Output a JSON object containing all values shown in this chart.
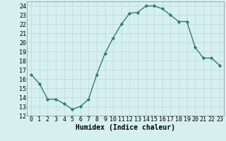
{
  "x": [
    0,
    1,
    2,
    3,
    4,
    5,
    6,
    7,
    8,
    9,
    10,
    11,
    12,
    13,
    14,
    15,
    16,
    17,
    18,
    19,
    20,
    21,
    22,
    23
  ],
  "y": [
    16.5,
    15.5,
    13.8,
    13.8,
    13.3,
    12.7,
    13.0,
    13.8,
    16.5,
    18.8,
    20.5,
    22.0,
    23.2,
    23.3,
    24.0,
    24.0,
    23.7,
    23.0,
    22.3,
    22.3,
    19.5,
    18.3,
    18.3,
    17.5
  ],
  "xlabel": "Humidex (Indice chaleur)",
  "xlim": [
    -0.5,
    23.5
  ],
  "ylim": [
    12,
    24.5
  ],
  "yticks": [
    12,
    13,
    14,
    15,
    16,
    17,
    18,
    19,
    20,
    21,
    22,
    23,
    24
  ],
  "xticks": [
    0,
    1,
    2,
    3,
    4,
    5,
    6,
    7,
    8,
    9,
    10,
    11,
    12,
    13,
    14,
    15,
    16,
    17,
    18,
    19,
    20,
    21,
    22,
    23
  ],
  "line_color": "#2e7d6e",
  "marker_color": "#2e7d6e",
  "bg_color": "#d6f0f0",
  "grid_color": "#b8d8d8",
  "label_fontsize": 7,
  "tick_fontsize": 6
}
